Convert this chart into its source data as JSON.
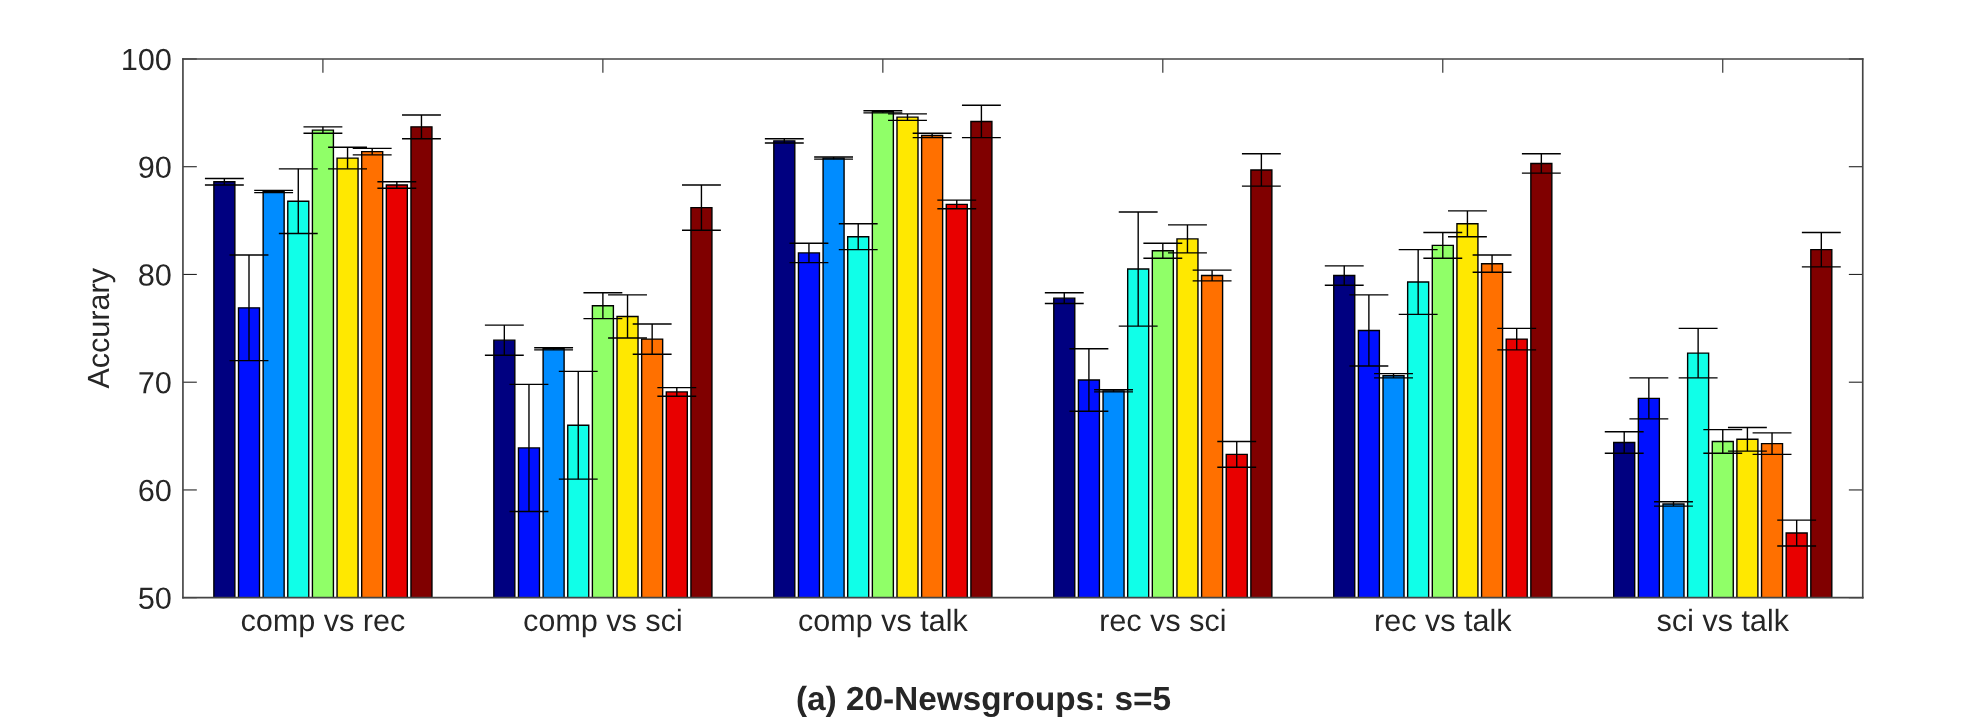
{
  "chart_data": {
    "type": "bar",
    "title": "(a) 20-Newsgroups: s=5",
    "ylabel": "Accurary",
    "categories": [
      "comp vs rec",
      "comp vs sci",
      "comp vs talk",
      "rec vs sci",
      "rec vs talk",
      "sci vs talk"
    ],
    "ylim": [
      50,
      100
    ],
    "yticks": [
      50,
      60,
      70,
      80,
      90,
      100
    ],
    "grid": false,
    "legend": false,
    "series": [
      {
        "color": "#000080",
        "values": [
          88.6,
          73.9,
          92.4,
          77.8,
          79.9,
          64.4
        ],
        "errors": [
          0.3,
          1.4,
          0.2,
          0.5,
          0.9,
          1.0
        ]
      },
      {
        "color": "#0010ff",
        "values": [
          76.9,
          63.9,
          82.0,
          70.2,
          74.8,
          68.5
        ],
        "errors": [
          4.9,
          5.9,
          0.9,
          2.9,
          3.3,
          1.9
        ]
      },
      {
        "color": "#008cff",
        "values": [
          87.7,
          73.1,
          90.8,
          69.2,
          70.6,
          58.7
        ],
        "errors": [
          0.1,
          0.1,
          0.1,
          0.1,
          0.2,
          0.2
        ]
      },
      {
        "color": "#10ffe8",
        "values": [
          86.8,
          66.0,
          83.5,
          80.5,
          79.3,
          72.7
        ],
        "errors": [
          3.0,
          5.0,
          1.2,
          5.3,
          3.0,
          2.3
        ]
      },
      {
        "color": "#90ff68",
        "values": [
          93.4,
          77.1,
          95.1,
          82.2,
          82.7,
          64.5
        ],
        "errors": [
          0.3,
          1.2,
          0.1,
          0.7,
          1.2,
          1.1
        ]
      },
      {
        "color": "#ffe800",
        "values": [
          90.8,
          76.1,
          94.6,
          83.3,
          84.7,
          64.7
        ],
        "errors": [
          1.0,
          2.0,
          0.3,
          1.3,
          1.2,
          1.1
        ]
      },
      {
        "color": "#ff7000",
        "values": [
          91.4,
          74.0,
          92.9,
          79.9,
          81.0,
          64.3
        ],
        "errors": [
          0.3,
          1.4,
          0.2,
          0.5,
          0.8,
          1.0
        ]
      },
      {
        "color": "#e80000",
        "values": [
          88.3,
          69.1,
          86.5,
          63.3,
          74.0,
          56.0
        ],
        "errors": [
          0.3,
          0.4,
          0.4,
          1.2,
          1.0,
          1.2
        ]
      },
      {
        "color": "#800000",
        "values": [
          93.7,
          86.2,
          94.2,
          89.7,
          90.3,
          82.3
        ],
        "errors": [
          1.1,
          2.1,
          1.5,
          1.5,
          0.9,
          1.6
        ]
      }
    ]
  }
}
